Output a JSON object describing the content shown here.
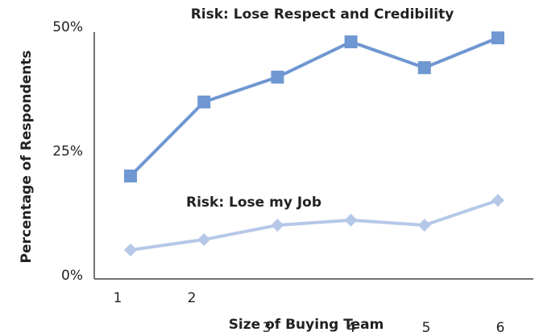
{
  "chart_data": {
    "type": "line",
    "xlabel": "Size of Buying Team",
    "ylabel": "Percentage of Respondents",
    "categories": [
      "1",
      "2",
      "3",
      "4",
      "5",
      "6"
    ],
    "series": [
      {
        "name": "Risk: Lose Respect and Credibility",
        "color": "#6f97d1",
        "marker": "square",
        "values": [
          20.4,
          35.3,
          40.3,
          47.4,
          42.2,
          48.2
        ]
      },
      {
        "name": "Risk: Lose my Job",
        "color": "#b6c8e8",
        "marker": "diamond",
        "values": [
          5.5,
          7.6,
          10.5,
          11.5,
          10.5,
          15.5
        ]
      }
    ],
    "ylim": [
      0,
      50
    ],
    "yticks": [
      {
        "value": 0,
        "label": "0%"
      },
      {
        "value": 25,
        "label": "25%"
      },
      {
        "value": 50,
        "label": "50%"
      }
    ],
    "grid": false
  }
}
